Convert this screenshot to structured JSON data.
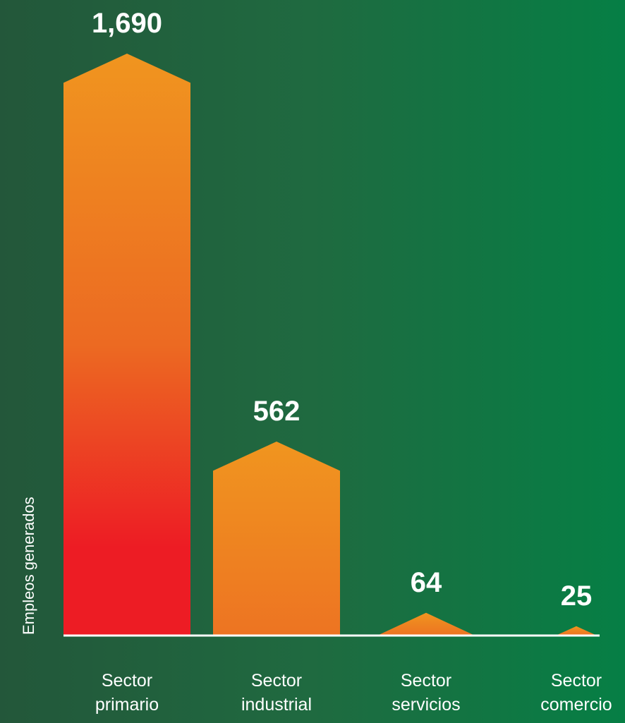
{
  "chart_data": {
    "type": "bar",
    "categories": [
      [
        "Sector",
        "primario"
      ],
      [
        "Sector",
        "industrial"
      ],
      [
        "Sector",
        "servicios"
      ],
      [
        "Sector",
        "comercio"
      ]
    ],
    "values": [
      1690,
      562,
      64,
      25
    ],
    "value_labels": [
      "1,690",
      "562",
      "64",
      "25"
    ],
    "ylabel": "Empleos generados",
    "title": "",
    "xlabel": "",
    "grid": false,
    "colors": {
      "bar_top": "#f0951f",
      "bar_mid": "#ec6a22",
      "bar_bottom": "#ed1c24",
      "axis": "#ffffff",
      "text": "#ffffff"
    }
  }
}
